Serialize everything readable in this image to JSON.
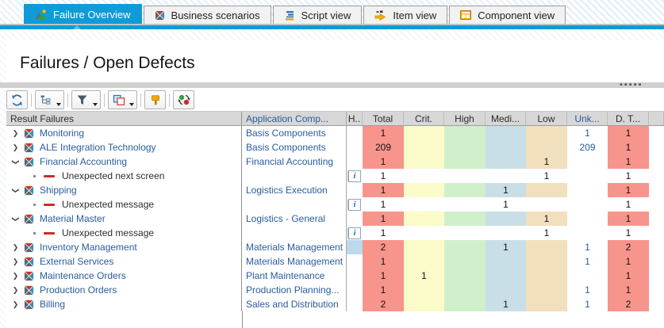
{
  "colors": {
    "accent_blue": "#0f9ad8",
    "link_blue": "#2a5c9e",
    "detail_red": "#cc2b2b",
    "cell_total": "#f7958d",
    "cell_crit": "#fafbc8",
    "cell_high": "#cff0cb",
    "cell_medium": "#c9dfe7",
    "cell_low": "#f2dfbe",
    "cell_h_highlight": "#bdd9ec"
  },
  "tabs": [
    {
      "label": "Failure Overview",
      "icon": "failure-overview-icon",
      "active": true
    },
    {
      "label": "Business scenarios",
      "icon": "business-scenarios-icon",
      "active": false
    },
    {
      "label": "Script view",
      "icon": "script-view-icon",
      "active": false
    },
    {
      "label": "Item view",
      "icon": "item-view-icon",
      "active": false
    },
    {
      "label": "Component view",
      "icon": "component-view-icon",
      "active": false
    }
  ],
  "header": {
    "title": "Failures / Open Defects"
  },
  "splitter": {
    "grip_icon": "grip-dots"
  },
  "toolbar": {
    "buttons": [
      {
        "name": "refresh-button",
        "icon": "refresh-icon",
        "dropdown": false
      },
      {
        "name": "hierarchy-button",
        "icon": "hierarchy-icon",
        "dropdown": true
      },
      {
        "name": "filter-button",
        "icon": "filter-icon",
        "dropdown": true
      },
      {
        "name": "copy-layout-button",
        "icon": "copy-icon",
        "dropdown": true
      },
      {
        "name": "alert-button",
        "icon": "hammer-icon",
        "dropdown": false
      },
      {
        "name": "swap-button",
        "icon": "swap-icon",
        "dropdown": false
      }
    ]
  },
  "table": {
    "columns": [
      {
        "key": "tree",
        "label": "Result Failures"
      },
      {
        "key": "app",
        "label": "Application Comp..."
      },
      {
        "key": "h",
        "label": "H.."
      },
      {
        "key": "total",
        "label": "Total"
      },
      {
        "key": "crit",
        "label": "Crit."
      },
      {
        "key": "high",
        "label": "High"
      },
      {
        "key": "medium",
        "label": "Medi..."
      },
      {
        "key": "low",
        "label": "Low"
      },
      {
        "key": "unknown",
        "label": "Unk..."
      },
      {
        "key": "dt",
        "label": "D. T..."
      }
    ],
    "rows": [
      {
        "type": "group",
        "expanded": false,
        "label": "Monitoring",
        "app": "Basis Components",
        "info": false,
        "h_highlight": false,
        "total": "1",
        "crit": "",
        "high": "",
        "medium": "",
        "low": "",
        "unknown": "1",
        "dt": "1"
      },
      {
        "type": "group",
        "expanded": false,
        "label": "ALE Integration Technology",
        "app": "Basis Components",
        "info": false,
        "h_highlight": false,
        "total": "209",
        "crit": "",
        "high": "",
        "medium": "",
        "low": "",
        "unknown": "209",
        "dt": "1"
      },
      {
        "type": "group",
        "expanded": true,
        "label": "Financial Accounting",
        "app": "Financial Accounting",
        "info": false,
        "h_highlight": false,
        "total": "1",
        "crit": "",
        "high": "",
        "medium": "",
        "low": "1",
        "unknown": "",
        "dt": "1"
      },
      {
        "type": "detail",
        "expanded": null,
        "label": "Unexpected next screen",
        "app": "",
        "info": true,
        "h_highlight": false,
        "total": "1",
        "crit": "",
        "high": "",
        "medium": "",
        "low": "1",
        "unknown": "",
        "dt": "1"
      },
      {
        "type": "group",
        "expanded": true,
        "label": "Shipping",
        "app": "Logistics Execution",
        "info": false,
        "h_highlight": false,
        "total": "1",
        "crit": "",
        "high": "",
        "medium": "1",
        "low": "",
        "unknown": "",
        "dt": "1"
      },
      {
        "type": "detail",
        "expanded": null,
        "label": "Unexpected message",
        "app": "",
        "info": true,
        "h_highlight": false,
        "total": "1",
        "crit": "",
        "high": "",
        "medium": "1",
        "low": "",
        "unknown": "",
        "dt": "1"
      },
      {
        "type": "group",
        "expanded": true,
        "label": "Material Master",
        "app": "Logistics - General",
        "info": false,
        "h_highlight": false,
        "total": "1",
        "crit": "",
        "high": "",
        "medium": "",
        "low": "1",
        "unknown": "",
        "dt": "1"
      },
      {
        "type": "detail",
        "expanded": null,
        "label": "Unexpected message",
        "app": "",
        "info": true,
        "h_highlight": false,
        "total": "1",
        "crit": "",
        "high": "",
        "medium": "",
        "low": "1",
        "unknown": "",
        "dt": "1"
      },
      {
        "type": "group",
        "expanded": false,
        "label": "Inventory Management",
        "app": "Materials Management",
        "info": false,
        "h_highlight": true,
        "total": "2",
        "crit": "",
        "high": "",
        "medium": "1",
        "low": "",
        "unknown": "1",
        "dt": "2"
      },
      {
        "type": "group",
        "expanded": false,
        "label": "External Services",
        "app": "Materials Management",
        "info": false,
        "h_highlight": false,
        "total": "1",
        "crit": "",
        "high": "",
        "medium": "",
        "low": "",
        "unknown": "1",
        "dt": "1"
      },
      {
        "type": "group",
        "expanded": false,
        "label": "Maintenance Orders",
        "app": "Plant Maintenance",
        "info": false,
        "h_highlight": false,
        "total": "1",
        "crit": "1",
        "high": "",
        "medium": "",
        "low": "",
        "unknown": "",
        "dt": "1"
      },
      {
        "type": "group",
        "expanded": false,
        "label": "Production Orders",
        "app": "Production Planning...",
        "info": false,
        "h_highlight": false,
        "total": "1",
        "crit": "",
        "high": "",
        "medium": "",
        "low": "",
        "unknown": "1",
        "dt": "1"
      },
      {
        "type": "group",
        "expanded": false,
        "label": "Billing",
        "app": "Sales and Distribution",
        "info": false,
        "h_highlight": false,
        "total": "2",
        "crit": "",
        "high": "",
        "medium": "1",
        "low": "",
        "unknown": "1",
        "dt": "2"
      }
    ]
  }
}
